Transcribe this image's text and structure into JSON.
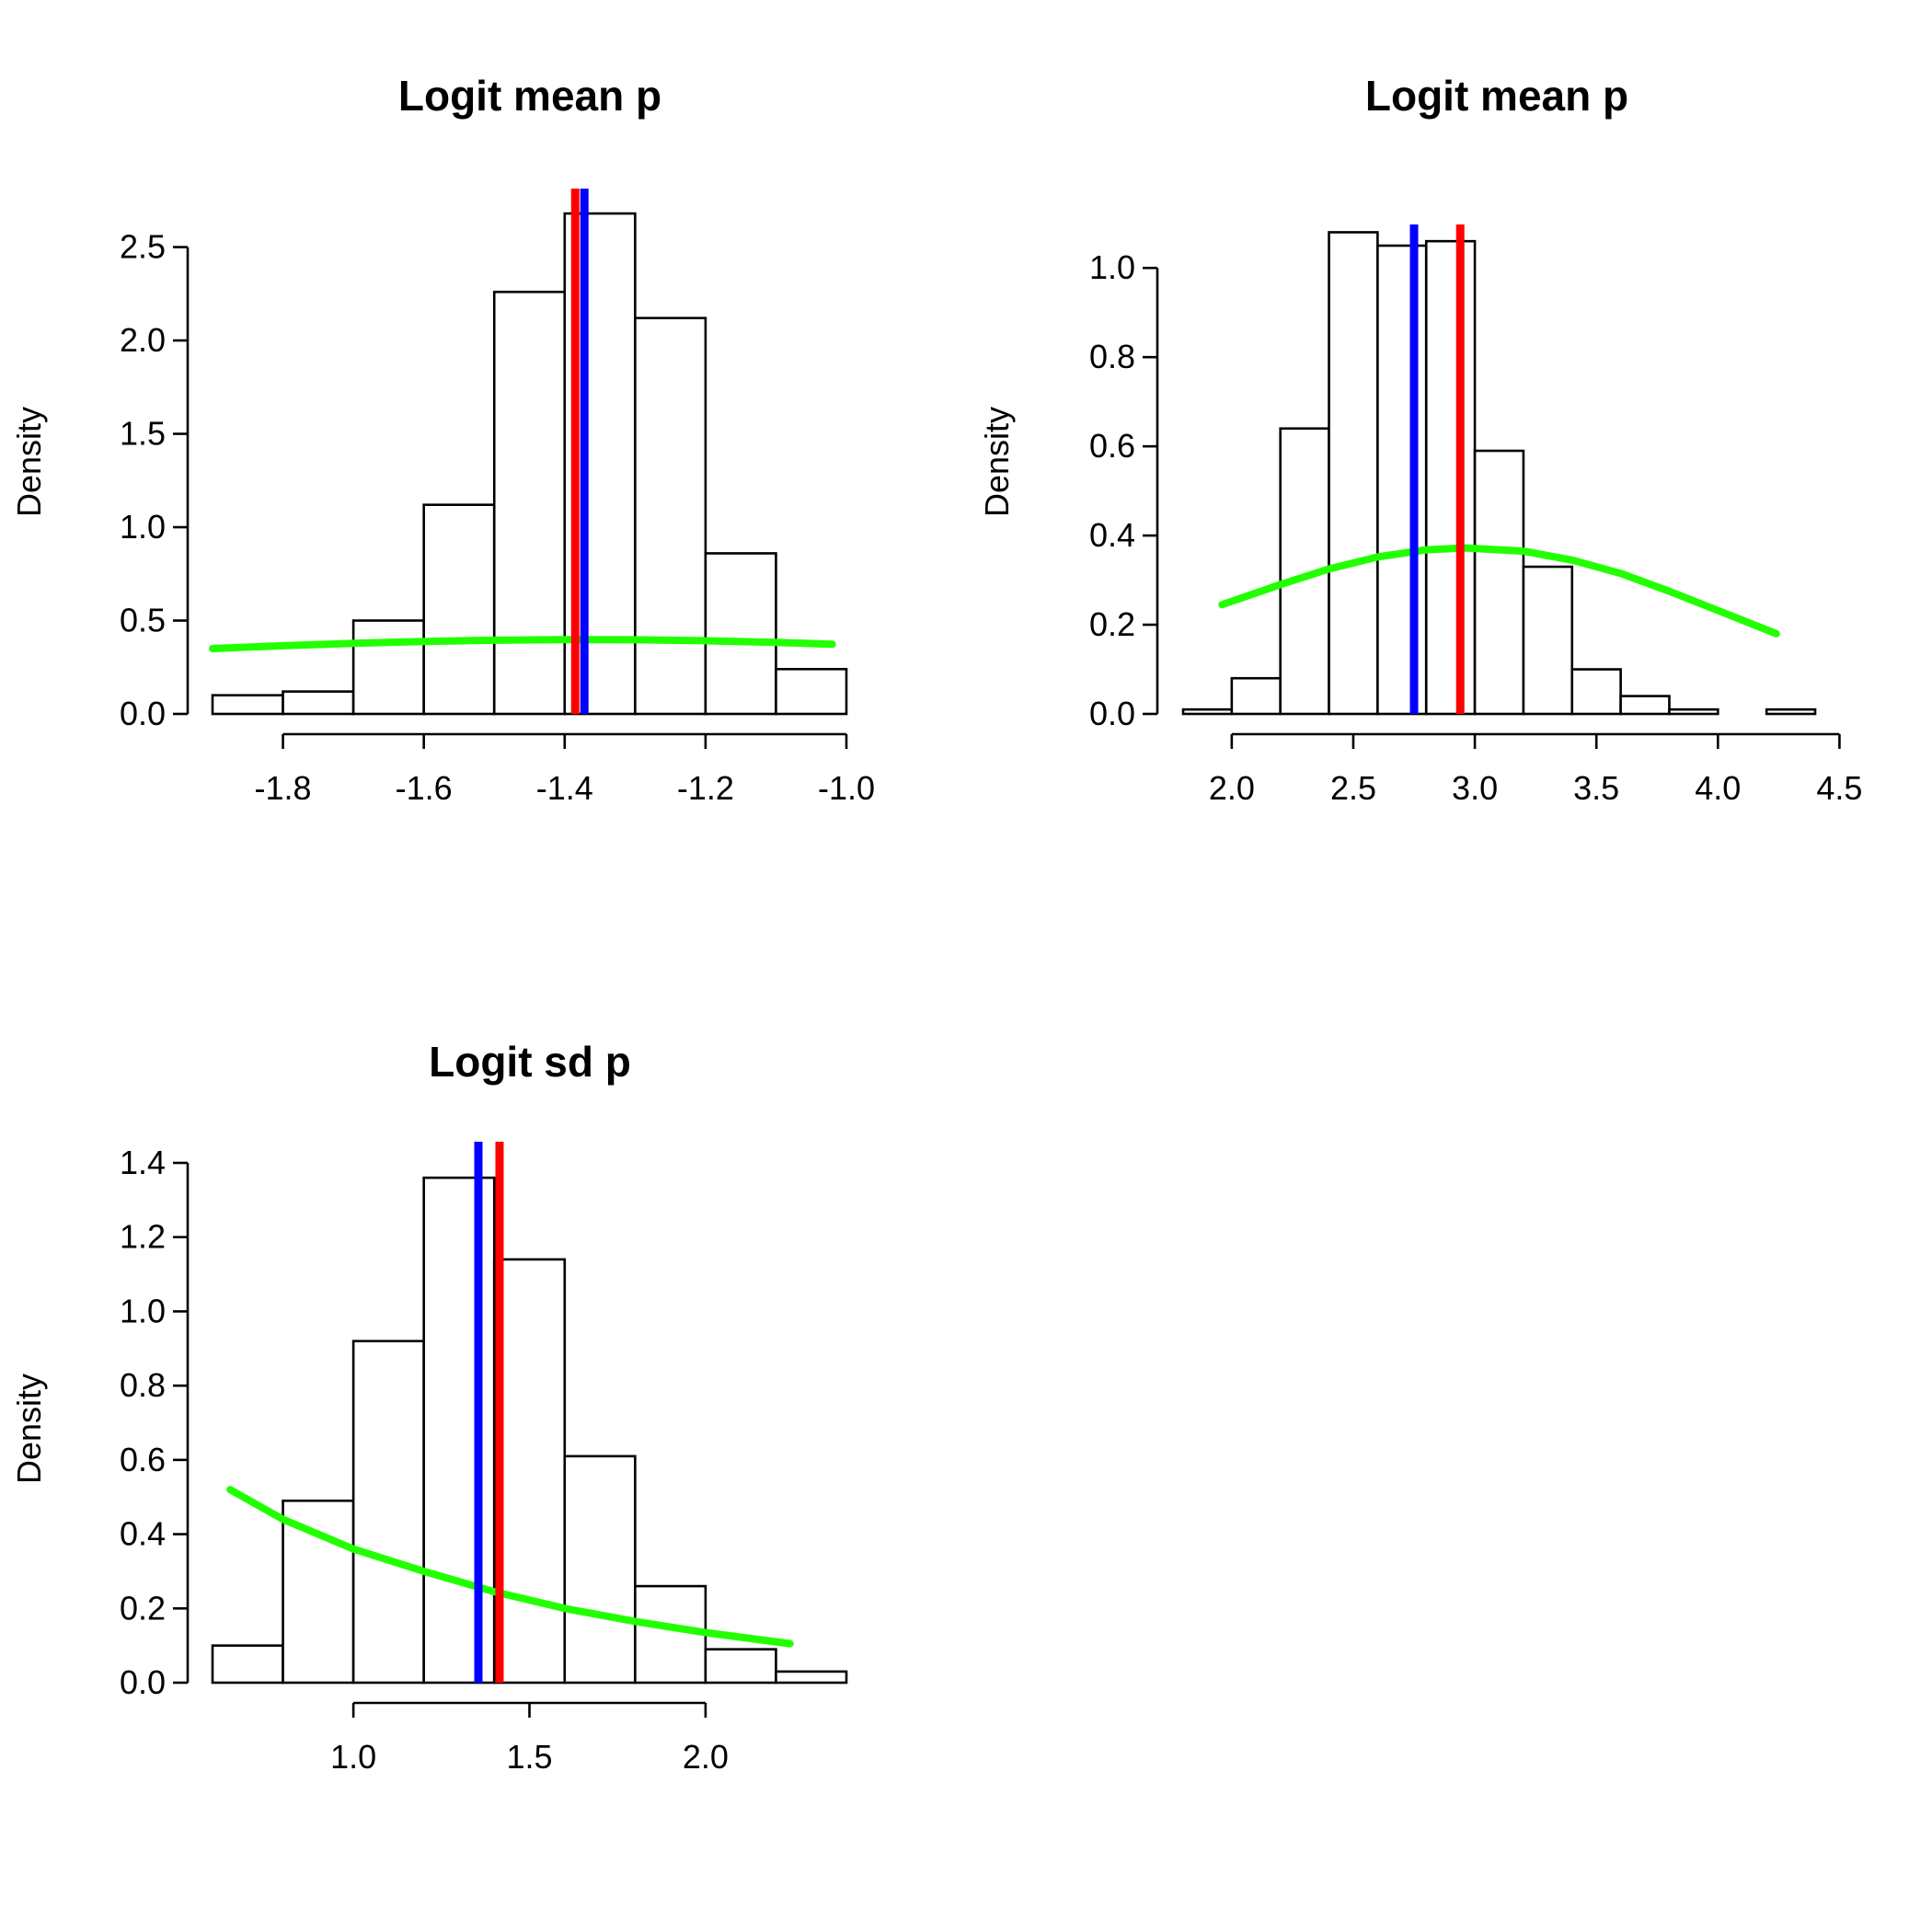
{
  "colors": {
    "bar_fill": "#ffffff",
    "bar_stroke": "#000000",
    "density_curve": "#22ff00",
    "blue_line": "#0000ff",
    "red_line": "#ff0000"
  },
  "chart_data": [
    {
      "type": "bar",
      "title": "Logit mean p",
      "xlabel": "",
      "ylabel": "Density",
      "bin_edges": [
        -1.9,
        -1.8,
        -1.7,
        -1.6,
        -1.5,
        -1.4,
        -1.3,
        -1.2,
        -1.1,
        -1.0
      ],
      "values": [
        0.1,
        0.12,
        0.5,
        1.12,
        2.26,
        2.68,
        2.12,
        0.86,
        0.24
      ],
      "xlim": [
        -1.9,
        -1.0
      ],
      "ylim": [
        0,
        2.7
      ],
      "x_ticks": [
        -1.8,
        -1.6,
        -1.4,
        -1.2,
        -1.0
      ],
      "x_tick_labels": [
        "-1.8",
        "-1.6",
        "-1.4",
        "-1.2",
        "-1.0"
      ],
      "y_ticks": [
        0,
        0.5,
        1.0,
        1.5,
        2.0,
        2.5
      ],
      "y_tick_labels": [
        "0.0",
        "0.5",
        "1.0",
        "1.5",
        "2.0",
        "2.5"
      ],
      "curve": {
        "x": [
          -1.9,
          -1.8,
          -1.7,
          -1.6,
          -1.5,
          -1.4,
          -1.3,
          -1.2,
          -1.1,
          -1.02
        ],
        "y": [
          0.35,
          0.365,
          0.378,
          0.388,
          0.395,
          0.398,
          0.397,
          0.392,
          0.383,
          0.373
        ]
      },
      "vlines": [
        {
          "x": -1.385,
          "color": "red"
        },
        {
          "x": -1.372,
          "color": "blue"
        }
      ]
    },
    {
      "type": "bar",
      "title": "Logit mean p",
      "xlabel": "",
      "ylabel": "Density",
      "bin_edges": [
        1.8,
        2.0,
        2.2,
        2.4,
        2.6,
        2.8,
        3.0,
        3.2,
        3.4,
        3.6,
        3.8,
        4.0,
        4.2,
        4.4
      ],
      "values": [
        0.01,
        0.08,
        0.64,
        1.08,
        1.05,
        1.06,
        0.59,
        0.33,
        0.1,
        0.04,
        0.01,
        0.0,
        0.01
      ],
      "xlim": [
        1.8,
        4.4
      ],
      "ylim": [
        0,
        1.05
      ],
      "x_ticks": [
        2.0,
        2.5,
        3.0,
        3.5,
        4.0,
        4.5
      ],
      "x_tick_labels": [
        "2.0",
        "2.5",
        "3.0",
        "3.5",
        "4.0",
        "4.5"
      ],
      "y_ticks": [
        0,
        0.2,
        0.4,
        0.6,
        0.8,
        1.0
      ],
      "y_tick_labels": [
        "0.0",
        "0.2",
        "0.4",
        "0.6",
        "0.8",
        "1.0"
      ],
      "curve": {
        "x": [
          1.96,
          2.2,
          2.4,
          2.6,
          2.8,
          2.96,
          3.2,
          3.4,
          3.6,
          3.8,
          4.0,
          4.24
        ],
        "y": [
          0.245,
          0.29,
          0.325,
          0.352,
          0.368,
          0.372,
          0.365,
          0.345,
          0.315,
          0.275,
          0.232,
          0.18
        ]
      },
      "vlines": [
        {
          "x": 2.75,
          "color": "blue"
        },
        {
          "x": 2.94,
          "color": "red"
        }
      ]
    },
    {
      "type": "bar",
      "title": "Logit sd p",
      "xlabel": "",
      "ylabel": "Density",
      "bin_edges": [
        0.6,
        0.8,
        1.0,
        1.2,
        1.4,
        1.6,
        1.8,
        2.0,
        2.2,
        2.4
      ],
      "values": [
        0.1,
        0.49,
        0.92,
        1.36,
        1.14,
        0.61,
        0.26,
        0.09,
        0.03
      ],
      "xlim": [
        0.6,
        2.4
      ],
      "ylim": [
        0,
        1.4
      ],
      "x_ticks": [
        1.0,
        1.5,
        2.0
      ],
      "x_tick_labels": [
        "1.0",
        "1.5",
        "2.0"
      ],
      "y_ticks": [
        0,
        0.2,
        0.4,
        0.6,
        0.8,
        1.0,
        1.2,
        1.4
      ],
      "y_tick_labels": [
        "0.0",
        "0.2",
        "0.4",
        "0.6",
        "0.8",
        "1.0",
        "1.2",
        "1.4"
      ],
      "curve": {
        "x": [
          0.65,
          0.8,
          1.0,
          1.2,
          1.4,
          1.6,
          1.8,
          2.0,
          2.24
        ],
        "y": [
          0.52,
          0.44,
          0.36,
          0.3,
          0.245,
          0.2,
          0.165,
          0.135,
          0.105
        ]
      },
      "vlines": [
        {
          "x": 1.355,
          "color": "blue"
        },
        {
          "x": 1.415,
          "color": "red"
        }
      ]
    }
  ]
}
